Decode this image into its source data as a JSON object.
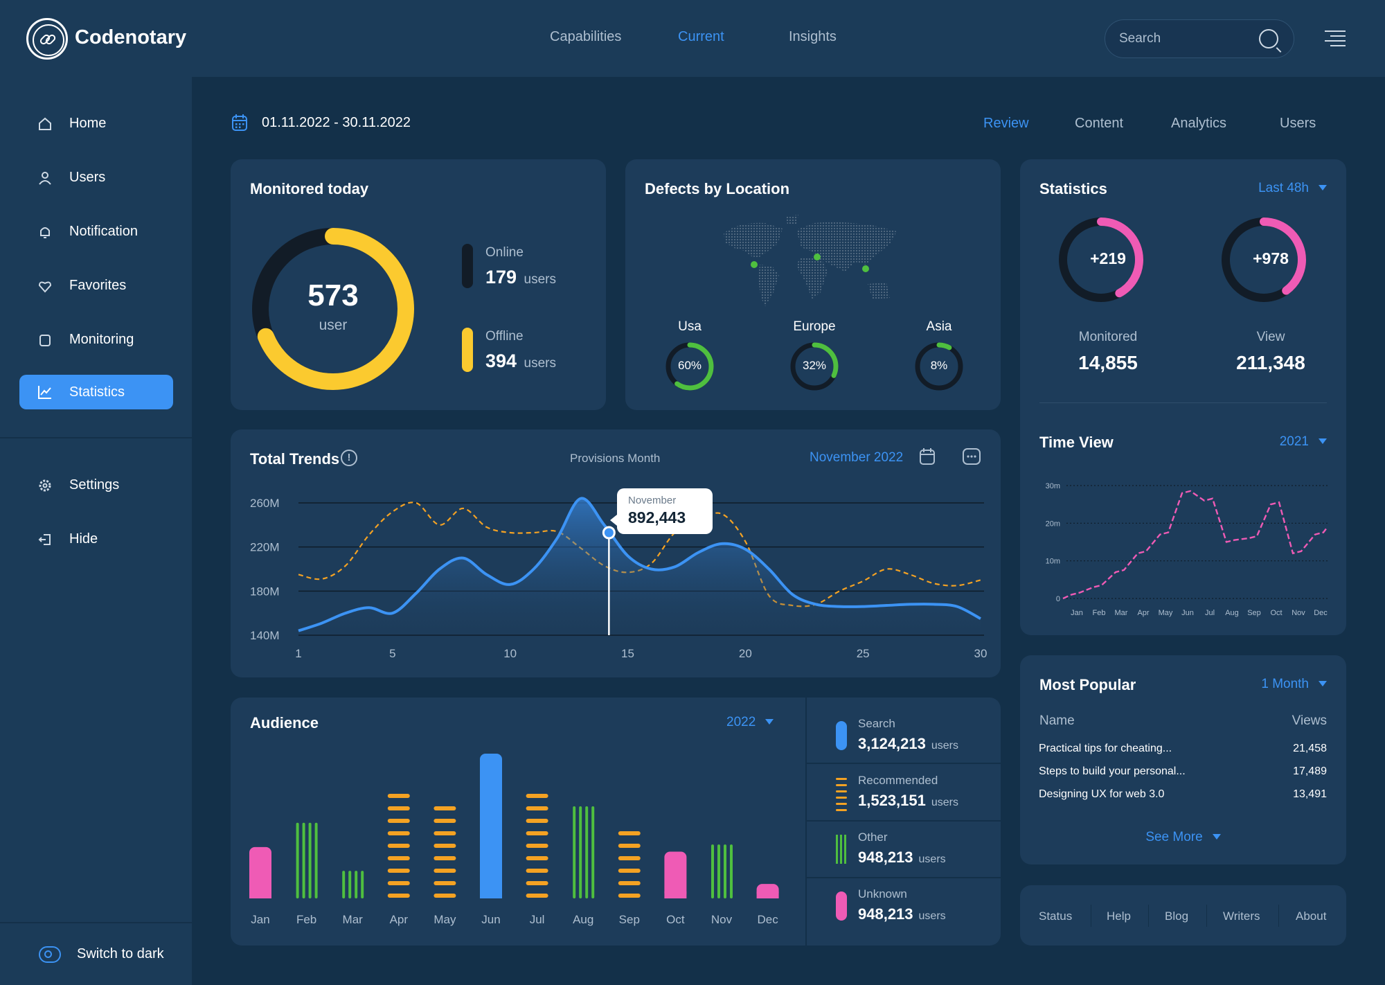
{
  "brand": {
    "name": "Codenotary"
  },
  "top_nav": [
    "Capabilities",
    "Current",
    "Insights"
  ],
  "search": {
    "placeholder": "Search"
  },
  "sidebar": {
    "items": [
      {
        "label": "Home",
        "icon": "home-icon"
      },
      {
        "label": "Users",
        "icon": "user-icon"
      },
      {
        "label": "Notification",
        "icon": "bell-icon"
      },
      {
        "label": "Favorites",
        "icon": "heart-icon"
      },
      {
        "label": "Monitoring",
        "icon": "monitor-icon"
      },
      {
        "label": "Statistics",
        "icon": "chart-icon",
        "active": true
      }
    ],
    "secondary": [
      {
        "label": "Settings",
        "icon": "gear-icon"
      },
      {
        "label": "Hide",
        "icon": "logout-icon"
      }
    ],
    "switch_label": "Switch to dark"
  },
  "date_range": "01.11.2022 - 30.11.2022",
  "tabs": [
    "Review",
    "Content",
    "Analytics",
    "Users"
  ],
  "monitored": {
    "title": "Monitored today",
    "total": "573",
    "total_unit": "user",
    "online_label": "Online",
    "online_value": "179",
    "offline_label": "Offline",
    "offline_value": "394",
    "unit": "users",
    "online_fraction": 0.312,
    "offline_fraction": 0.688
  },
  "defects": {
    "title": "Defects by Location",
    "locations": [
      {
        "name": "Usa",
        "percent_label": "60%",
        "value": 60
      },
      {
        "name": "Europe",
        "percent_label": "32%",
        "value": 32
      },
      {
        "name": "Asia",
        "percent_label": "8%",
        "value": 8
      }
    ]
  },
  "statistics": {
    "title": "Statistics",
    "filter": "Last 48h",
    "items": [
      {
        "delta": "+219",
        "label": "Monitored",
        "value": "14,855",
        "fraction": 0.42
      },
      {
        "delta": "+978",
        "label": "View",
        "value": "211,348",
        "fraction": 0.4
      }
    ]
  },
  "trends": {
    "title": "Total Trends",
    "subtitle": "Provisions Month",
    "period": "November 2022",
    "tooltip_label": "November",
    "tooltip_value": "892,443"
  },
  "time_view": {
    "title": "Time View",
    "filter": "2021"
  },
  "audience": {
    "title": "Audience",
    "filter": "2022",
    "legend": [
      {
        "name": "Search",
        "value": "3,124,213",
        "unit": "users",
        "color": "#3c93f4"
      },
      {
        "name": "Recommended",
        "value": "1,523,151",
        "unit": "users",
        "color": "#f4a223"
      },
      {
        "name": "Other",
        "value": "948,213",
        "unit": "users",
        "color": "#4fbf3f"
      },
      {
        "name": "Unknown",
        "value": "948,213",
        "unit": "users",
        "color": "#ef5bb5"
      }
    ]
  },
  "popular": {
    "title": "Most Popular",
    "filter": "1 Month",
    "col_name": "Name",
    "col_views": "Views",
    "rows": [
      {
        "name": "Practical tips for cheating...",
        "views": "21,458"
      },
      {
        "name": "Steps to build your personal...",
        "views": "17,489"
      },
      {
        "name": "Designing UX for web 3.0",
        "views": "13,491"
      }
    ],
    "see_more": "See More"
  },
  "footer": [
    "Status",
    "Help",
    "Blog",
    "Writers",
    "About"
  ],
  "colors": {
    "accent": "#3c93f4",
    "yellow": "#fbca2f",
    "pink": "#ef5bb5",
    "green": "#4fbf3f",
    "orange": "#f4a223"
  },
  "chart_data": [
    {
      "type": "area",
      "title": "Total Trends",
      "x": [
        1,
        2,
        3,
        4,
        5,
        6,
        7,
        8,
        9,
        10,
        11,
        12,
        13,
        14,
        15,
        16,
        17,
        18,
        19,
        20,
        21,
        22,
        23,
        24,
        25,
        26,
        27,
        28,
        29,
        30
      ],
      "xticks": [
        1,
        5,
        10,
        15,
        20,
        25,
        30
      ],
      "ytick_labels": [
        "260M",
        "220M",
        "180M",
        "140M"
      ],
      "ylim": [
        140,
        260
      ],
      "series": [
        {
          "values": [
            144,
            151,
            160,
            165,
            160,
            178,
            200,
            210,
            195,
            186,
            200,
            228,
            264,
            240,
            212,
            200,
            202,
            215,
            223,
            218,
            200,
            177,
            168,
            166,
            166,
            167,
            168,
            168,
            166,
            155
          ]
        },
        {
          "values": [
            195,
            191,
            203,
            231,
            252,
            260,
            240,
            255,
            238,
            233,
            233,
            234,
            219,
            203,
            197,
            205,
            233,
            244,
            250,
            225,
            176,
            167,
            168,
            180,
            189,
            200,
            195,
            187,
            185,
            190
          ]
        }
      ]
    },
    {
      "type": "line",
      "title": "Time View",
      "categories": [
        "Jan",
        "Feb",
        "Mar",
        "Apr",
        "May",
        "Jun",
        "Jul",
        "Aug",
        "Sep",
        "Oct",
        "Nov",
        "Dec"
      ],
      "ytick_labels": [
        "30m",
        "20m",
        "10m",
        "0"
      ],
      "ylim": [
        0,
        30
      ],
      "series": [
        {
          "values": [
            1,
            3,
            7,
            12,
            17,
            28,
            26,
            15,
            16,
            25,
            12,
            17
          ]
        }
      ]
    },
    {
      "type": "bar",
      "title": "Audience",
      "categories": [
        "Jan",
        "Feb",
        "Mar",
        "Apr",
        "May",
        "Jun",
        "Jul",
        "Aug",
        "Sep",
        "Oct",
        "Nov",
        "Dec"
      ],
      "values": [
        78,
        115,
        42,
        170,
        150,
        220,
        170,
        140,
        108,
        71,
        82,
        22
      ],
      "kinds": [
        "Unknown",
        "Other",
        "Other",
        "Recommended",
        "Recommended",
        "Search",
        "Recommended",
        "Other",
        "Recommended",
        "Unknown",
        "Other",
        "Unknown"
      ]
    }
  ]
}
